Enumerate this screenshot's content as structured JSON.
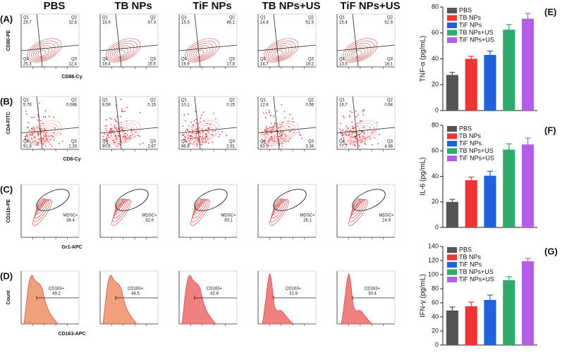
{
  "columns": [
    "PBS",
    "TB NPs",
    "TiF NPs",
    "TB NPs+US",
    "TiF NPs+US"
  ],
  "flow": {
    "quadrants": [
      "Q1",
      "Q2",
      "Q3",
      "Q4"
    ],
    "panels": [
      {
        "label": "(A)",
        "kind": "quad",
        "y_label": "CD80-PE",
        "x_label": "CD86-Cy",
        "values": [
          [
            29.7,
            32.6,
            12.4,
            25.3
          ],
          [
            18.9,
            47.3,
            15.5,
            18.4
          ],
          [
            15.3,
            46.1,
            17.8,
            19.9
          ],
          [
            14.8,
            51.5,
            19.2,
            14.7
          ],
          [
            15.4,
            52.9,
            18.1,
            13.5
          ]
        ]
      },
      {
        "label": "(B)",
        "kind": "quad-dots",
        "y_label": "CD4-FITC",
        "x_label": "CD8-Cy",
        "values": [
          [
            5.76,
            0.086,
            2.33,
            91.8
          ],
          [
            6.59,
            0.15,
            2.67,
            90.6
          ],
          [
            10.1,
            0.15,
            2.91,
            86.8
          ],
          [
            12.6,
            0.56,
            3.38,
            83.5
          ],
          [
            16.7,
            0.64,
            4.98,
            77.7
          ]
        ]
      },
      {
        "label": "(C)",
        "kind": "gate",
        "y_label": "CD11b-PE",
        "x_label": "Gr1-APC",
        "gate": "MDSC+",
        "values": [
          38.4,
          32.6,
          30.1,
          26.1,
          24.9
        ]
      },
      {
        "label": "(D)",
        "kind": "hist",
        "y_label": "Count",
        "x_label": "CD163-APC",
        "gate": "CD163+",
        "values": [
          49.2,
          44.5,
          42.9,
          31.9,
          30.4
        ]
      }
    ]
  },
  "chart_data": [
    {
      "type": "bar",
      "label": "(E)",
      "y_label": "TNF-α (pg/mL)",
      "categories": [
        null
      ],
      "ylim": [
        0,
        80
      ],
      "yticks": [
        0,
        20,
        40,
        60,
        80
      ],
      "legend": "top-left",
      "series": [
        {
          "name": "PBS",
          "color": "#555555",
          "values": [
            27.5
          ],
          "errors": [
            2
          ]
        },
        {
          "name": "TB NPs",
          "color": "#ee3535",
          "values": [
            40
          ],
          "errors": [
            2
          ]
        },
        {
          "name": "TiF NPs",
          "color": "#1f62dc",
          "values": [
            43
          ],
          "errors": [
            3
          ]
        },
        {
          "name": "TB NPs+US",
          "color": "#2eaa6c",
          "values": [
            62.5
          ],
          "errors": [
            4
          ]
        },
        {
          "name": "TiF NPs+US",
          "color": "#b35ee6",
          "values": [
            71
          ],
          "errors": [
            4
          ]
        }
      ]
    },
    {
      "type": "bar",
      "label": "(F)",
      "y_label": "IL-6 (pg/mL)",
      "categories": [
        null
      ],
      "ylim": [
        0,
        80
      ],
      "yticks": [
        0,
        20,
        40,
        60,
        80
      ],
      "legend": "top-left",
      "series": [
        {
          "name": "PBS",
          "color": "#555555",
          "values": [
            20
          ],
          "errors": [
            2
          ]
        },
        {
          "name": "TB NPs",
          "color": "#ee3535",
          "values": [
            37
          ],
          "errors": [
            2.5
          ]
        },
        {
          "name": "TiF NPs",
          "color": "#1f62dc",
          "values": [
            40.5
          ],
          "errors": [
            3.5
          ]
        },
        {
          "name": "TB NPs+US",
          "color": "#2eaa6c",
          "values": [
            61
          ],
          "errors": [
            4.5
          ]
        },
        {
          "name": "TiF NPs+US",
          "color": "#b35ee6",
          "values": [
            65
          ],
          "errors": [
            5
          ]
        }
      ]
    },
    {
      "type": "bar",
      "label": "(G)",
      "y_label": "IFN-γ (pg/mL)",
      "categories": [
        null
      ],
      "ylim": [
        0,
        140
      ],
      "yticks": [
        0,
        20,
        40,
        60,
        80,
        100,
        120,
        140
      ],
      "legend": "top-left",
      "series": [
        {
          "name": "PBS",
          "color": "#555555",
          "values": [
            49
          ],
          "errors": [
            5
          ]
        },
        {
          "name": "TB NPs",
          "color": "#ee3535",
          "values": [
            55
          ],
          "errors": [
            6
          ]
        },
        {
          "name": "TiF NPs",
          "color": "#1f62dc",
          "values": [
            64
          ],
          "errors": [
            7
          ]
        },
        {
          "name": "TB NPs+US",
          "color": "#2eaa6c",
          "values": [
            92
          ],
          "errors": [
            5
          ]
        },
        {
          "name": "TiF NPs+US",
          "color": "#b35ee6",
          "values": [
            119
          ],
          "errors": [
            4
          ]
        }
      ]
    }
  ]
}
